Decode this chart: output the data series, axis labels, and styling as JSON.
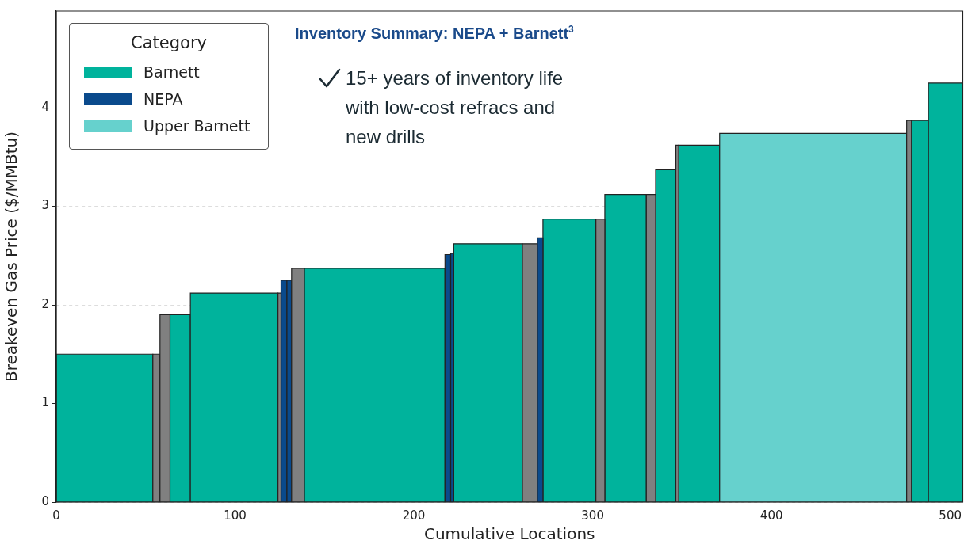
{
  "chart_data": {
    "type": "histogram",
    "title": "Inventory Summary: NEPA + Barnett$^{3}$",
    "xlabel": "Cumulative Locations",
    "ylabel": "Breakeven Gas Price ($/MMBtu)",
    "legend_title": "Category",
    "annotations": [
      "15+ years of inventory life with low-cost refracs and new drills"
    ],
    "bins": [
      0,
      54,
      58,
      63.6,
      75,
      124,
      125.7,
      129,
      131.6,
      138.7,
      217.4,
      220.6,
      222.3,
      260.7,
      269,
      272.2,
      301.8,
      306.8,
      330,
      335.2,
      346.5,
      348.1,
      371,
      475.6,
      478.3,
      487.8,
      507
    ],
    "series": [
      {
        "name": "Barnett",
        "color": "#00b39c",
        "values": [
          1.5,
          null,
          null,
          1.9,
          2.12,
          null,
          null,
          null,
          null,
          2.37,
          null,
          null,
          2.62,
          null,
          null,
          2.87,
          null,
          3.12,
          null,
          3.37,
          null,
          3.62,
          null,
          null,
          3.87,
          4.25
        ]
      },
      {
        "name": "NEPA",
        "color": "#0a4a8c",
        "values": [
          null,
          null,
          null,
          null,
          null,
          null,
          2.25,
          2.25,
          null,
          null,
          2.51,
          2.52,
          null,
          null,
          2.68,
          null,
          null,
          null,
          null,
          null,
          null,
          null,
          null,
          null,
          null,
          null
        ]
      },
      {
        "name": "Upper Barnett",
        "color": "#66d1cd",
        "values": [
          null,
          null,
          null,
          null,
          null,
          null,
          null,
          null,
          null,
          null,
          null,
          null,
          null,
          null,
          null,
          null,
          null,
          null,
          null,
          null,
          null,
          null,
          3.74,
          null,
          null,
          null
        ]
      },
      {
        "color": "#808080",
        "values": [
          null,
          1.5,
          1.9,
          null,
          null,
          2.12,
          null,
          null,
          2.37,
          null,
          null,
          null,
          null,
          2.62,
          null,
          null,
          2.87,
          null,
          3.12,
          null,
          3.62,
          null,
          null,
          3.87,
          null,
          null
        ]
      }
    ],
    "xlim": [
      0,
      507
    ],
    "xticks": [
      0,
      100,
      200,
      300,
      400,
      500
    ],
    "ylim": [
      0,
      4.98
    ],
    "yticks": [
      0,
      1,
      2,
      3,
      4
    ],
    "grid": "y",
    "legend": "top left"
  }
}
